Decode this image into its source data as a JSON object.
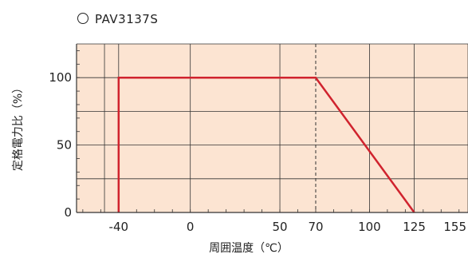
{
  "chart_data": {
    "type": "line",
    "title": "PAV3137S",
    "xlabel": "周囲温度（℃）",
    "ylabel": "定格電力比（%）",
    "x_ticks": [
      {
        "value": -40,
        "label": "-40"
      },
      {
        "value": 0,
        "label": "0"
      },
      {
        "value": 50,
        "label": "50"
      },
      {
        "value": 70,
        "label": "70"
      },
      {
        "value": 100,
        "label": "100"
      },
      {
        "value": 125,
        "label": "125"
      },
      {
        "value": 155,
        "label": "155"
      }
    ],
    "y_ticks": [
      {
        "value": 0,
        "label": "0"
      },
      {
        "value": 50,
        "label": "50"
      },
      {
        "value": 100,
        "label": "100"
      }
    ],
    "xlim": [
      -63.5,
      155
    ],
    "ylim": [
      0,
      125
    ],
    "grid": true,
    "series": [
      {
        "x": [
          -40,
          -40,
          70,
          125
        ],
        "y": [
          0,
          100,
          100,
          0
        ]
      }
    ],
    "reference_line": {
      "x": 70,
      "style": "dashed"
    },
    "colors": {
      "background": "#fce4d2",
      "line": "#d0232e",
      "grid": "#333333"
    }
  }
}
